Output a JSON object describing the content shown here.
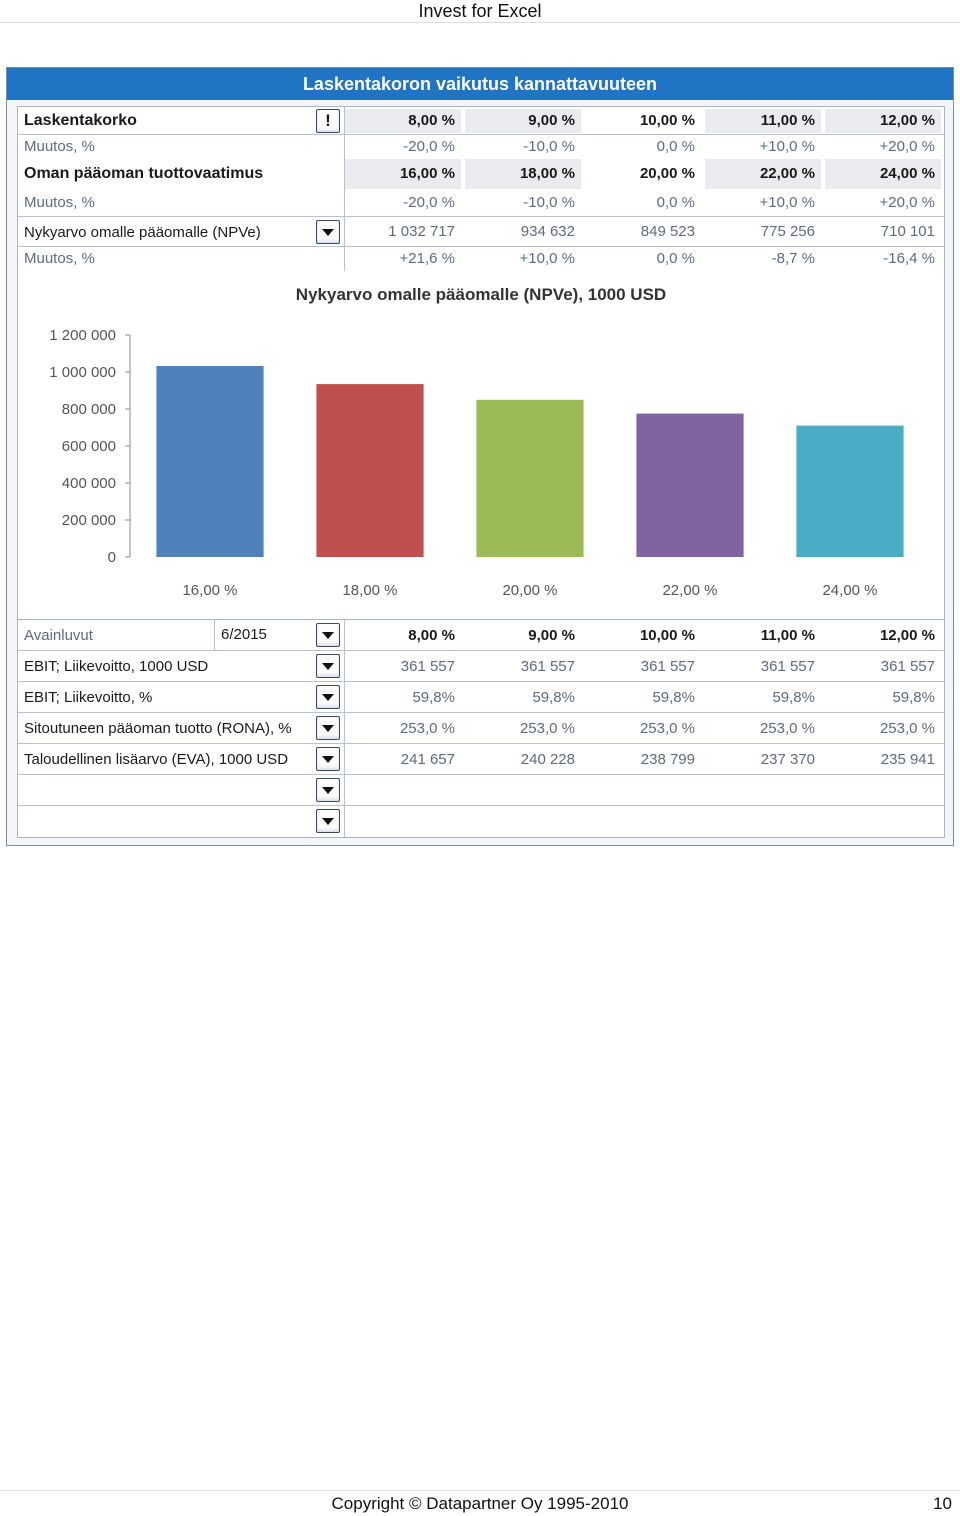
{
  "page": {
    "header_title": "Invest for Excel",
    "footer_copyright": "Copyright © Datapartner Oy 1995-2010",
    "page_number": "10"
  },
  "window": {
    "title": "Laskentakoron vaikutus kannattavuuteen"
  },
  "sensitivity_table": {
    "rows": [
      {
        "label": "Laskentakorko",
        "values": [
          "8,00 %",
          "9,00 %",
          "10,00 %",
          "11,00 %",
          "12,00 %"
        ]
      },
      {
        "label": "Muutos, %",
        "values": [
          "-20,0 %",
          "-10,0 %",
          "0,0 %",
          "+10,0 %",
          "+20,0 %"
        ]
      },
      {
        "label": "Oman pääoman tuottovaatimus",
        "values": [
          "16,00 %",
          "18,00 %",
          "20,00 %",
          "22,00 %",
          "24,00 %"
        ]
      },
      {
        "label": "Muutos, %",
        "values": [
          "-20,0 %",
          "-10,0 %",
          "0,0 %",
          "+10,0 %",
          "+20,0 %"
        ]
      },
      {
        "label": "Nykyarvo omalle pääomalle (NPVe)",
        "values": [
          "1 032 717",
          "934 632",
          "849 523",
          "775 256",
          "710 101"
        ]
      },
      {
        "label": "Muutos, %",
        "values": [
          "+21,6 %",
          "+10,0 %",
          "0,0 %",
          "-8,7 %",
          "-16,4 %"
        ]
      }
    ]
  },
  "chart_data": {
    "type": "bar",
    "title": "Nykyarvo omalle pääomalle (NPVe), 1000 USD",
    "categories": [
      "16,00 %",
      "18,00 %",
      "20,00 %",
      "22,00 %",
      "24,00 %"
    ],
    "values": [
      1032717,
      934632,
      849523,
      775256,
      710101
    ],
    "colors": [
      "#4f81bd",
      "#c0504d",
      "#9bbb59",
      "#8064a2",
      "#4bacc6"
    ],
    "ytick_labels": [
      "1 200 000",
      "1 000 000",
      "800 000",
      "600 000",
      "400 000",
      "200 000",
      "0"
    ],
    "yticks": [
      1200000,
      1000000,
      800000,
      600000,
      400000,
      200000,
      0
    ],
    "ylim": [
      0,
      1200000
    ],
    "grid": false,
    "legend": "none"
  },
  "key_figures": {
    "header_label": "Avainluvut",
    "period": "6/2015",
    "header_values": [
      "8,00 %",
      "9,00 %",
      "10,00 %",
      "11,00 %",
      "12,00 %"
    ],
    "rows": [
      {
        "label": "EBIT; Liikevoitto, 1000 USD",
        "values": [
          "361 557",
          "361 557",
          "361 557",
          "361 557",
          "361 557"
        ]
      },
      {
        "label": "EBIT; Liikevoitto, %",
        "values": [
          "59,8%",
          "59,8%",
          "59,8%",
          "59,8%",
          "59,8%"
        ]
      },
      {
        "label": "Sitoutuneen pääoman tuotto (RONA), %",
        "values": [
          "253,0 %",
          "253,0 %",
          "253,0 %",
          "253,0 %",
          "253,0 %"
        ]
      },
      {
        "label": "Taloudellinen lisäarvo (EVA), 1000 USD",
        "values": [
          "241 657",
          "240 228",
          "238 799",
          "237 370",
          "235 941"
        ]
      },
      {
        "label": "",
        "values": [
          "",
          "",
          "",
          "",
          ""
        ]
      },
      {
        "label": "",
        "values": [
          "",
          "",
          "",
          "",
          ""
        ]
      }
    ]
  },
  "icons": {
    "alert_button": "exclamation-icon",
    "dropdown_button": "chevron-down-icon"
  }
}
